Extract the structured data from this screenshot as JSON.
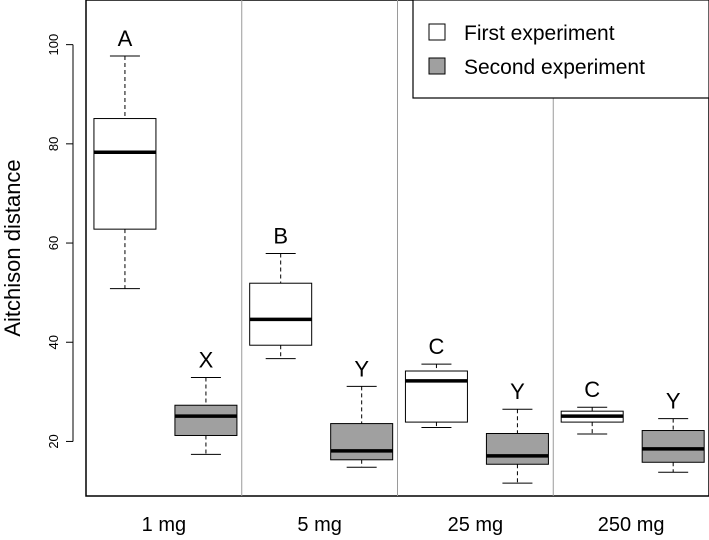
{
  "chart_data": {
    "type": "box",
    "ylabel": "Aitchison distance",
    "xlabel": "",
    "ylim": [
      9,
      109
    ],
    "yticks": [
      20,
      40,
      60,
      80,
      100
    ],
    "categories": [
      "1 mg",
      "5 mg",
      "25 mg",
      "250 mg"
    ],
    "separators": true,
    "legend": {
      "position": "top-right",
      "entries": [
        {
          "label": "First experiment",
          "color": "#ffffff"
        },
        {
          "label": "Second experiment",
          "color": "#a0a0a0"
        }
      ]
    },
    "series": [
      {
        "name": "First experiment",
        "color": "#ffffff",
        "boxes": [
          {
            "category": "1 mg",
            "min": 50.8,
            "q1": 62.8,
            "median": 78.3,
            "q3": 85.1,
            "max": 97.7,
            "label": "A"
          },
          {
            "category": "5 mg",
            "min": 36.7,
            "q1": 39.4,
            "median": 44.6,
            "q3": 51.9,
            "max": 57.9,
            "label": "B"
          },
          {
            "category": "25 mg",
            "min": 22.8,
            "q1": 23.9,
            "median": 32.2,
            "q3": 34.2,
            "max": 35.6,
            "label": "C"
          },
          {
            "category": "250 mg",
            "min": 21.5,
            "q1": 23.9,
            "median": 25.1,
            "q3": 26.1,
            "max": 26.9,
            "label": "C"
          }
        ]
      },
      {
        "name": "Second experiment",
        "color": "#a0a0a0",
        "boxes": [
          {
            "category": "1 mg",
            "min": 17.4,
            "q1": 21.2,
            "median": 25.1,
            "q3": 27.3,
            "max": 32.9,
            "label": "X"
          },
          {
            "category": "5 mg",
            "min": 14.8,
            "q1": 16.3,
            "median": 18.1,
            "q3": 23.6,
            "max": 31.1,
            "label": "Y"
          },
          {
            "category": "25 mg",
            "min": 11.6,
            "q1": 15.4,
            "median": 17.1,
            "q3": 21.6,
            "max": 26.5,
            "label": "Y"
          },
          {
            "category": "250 mg",
            "min": 13.8,
            "q1": 15.8,
            "median": 18.5,
            "q3": 22.2,
            "max": 24.6,
            "label": "Y"
          }
        ]
      }
    ]
  }
}
